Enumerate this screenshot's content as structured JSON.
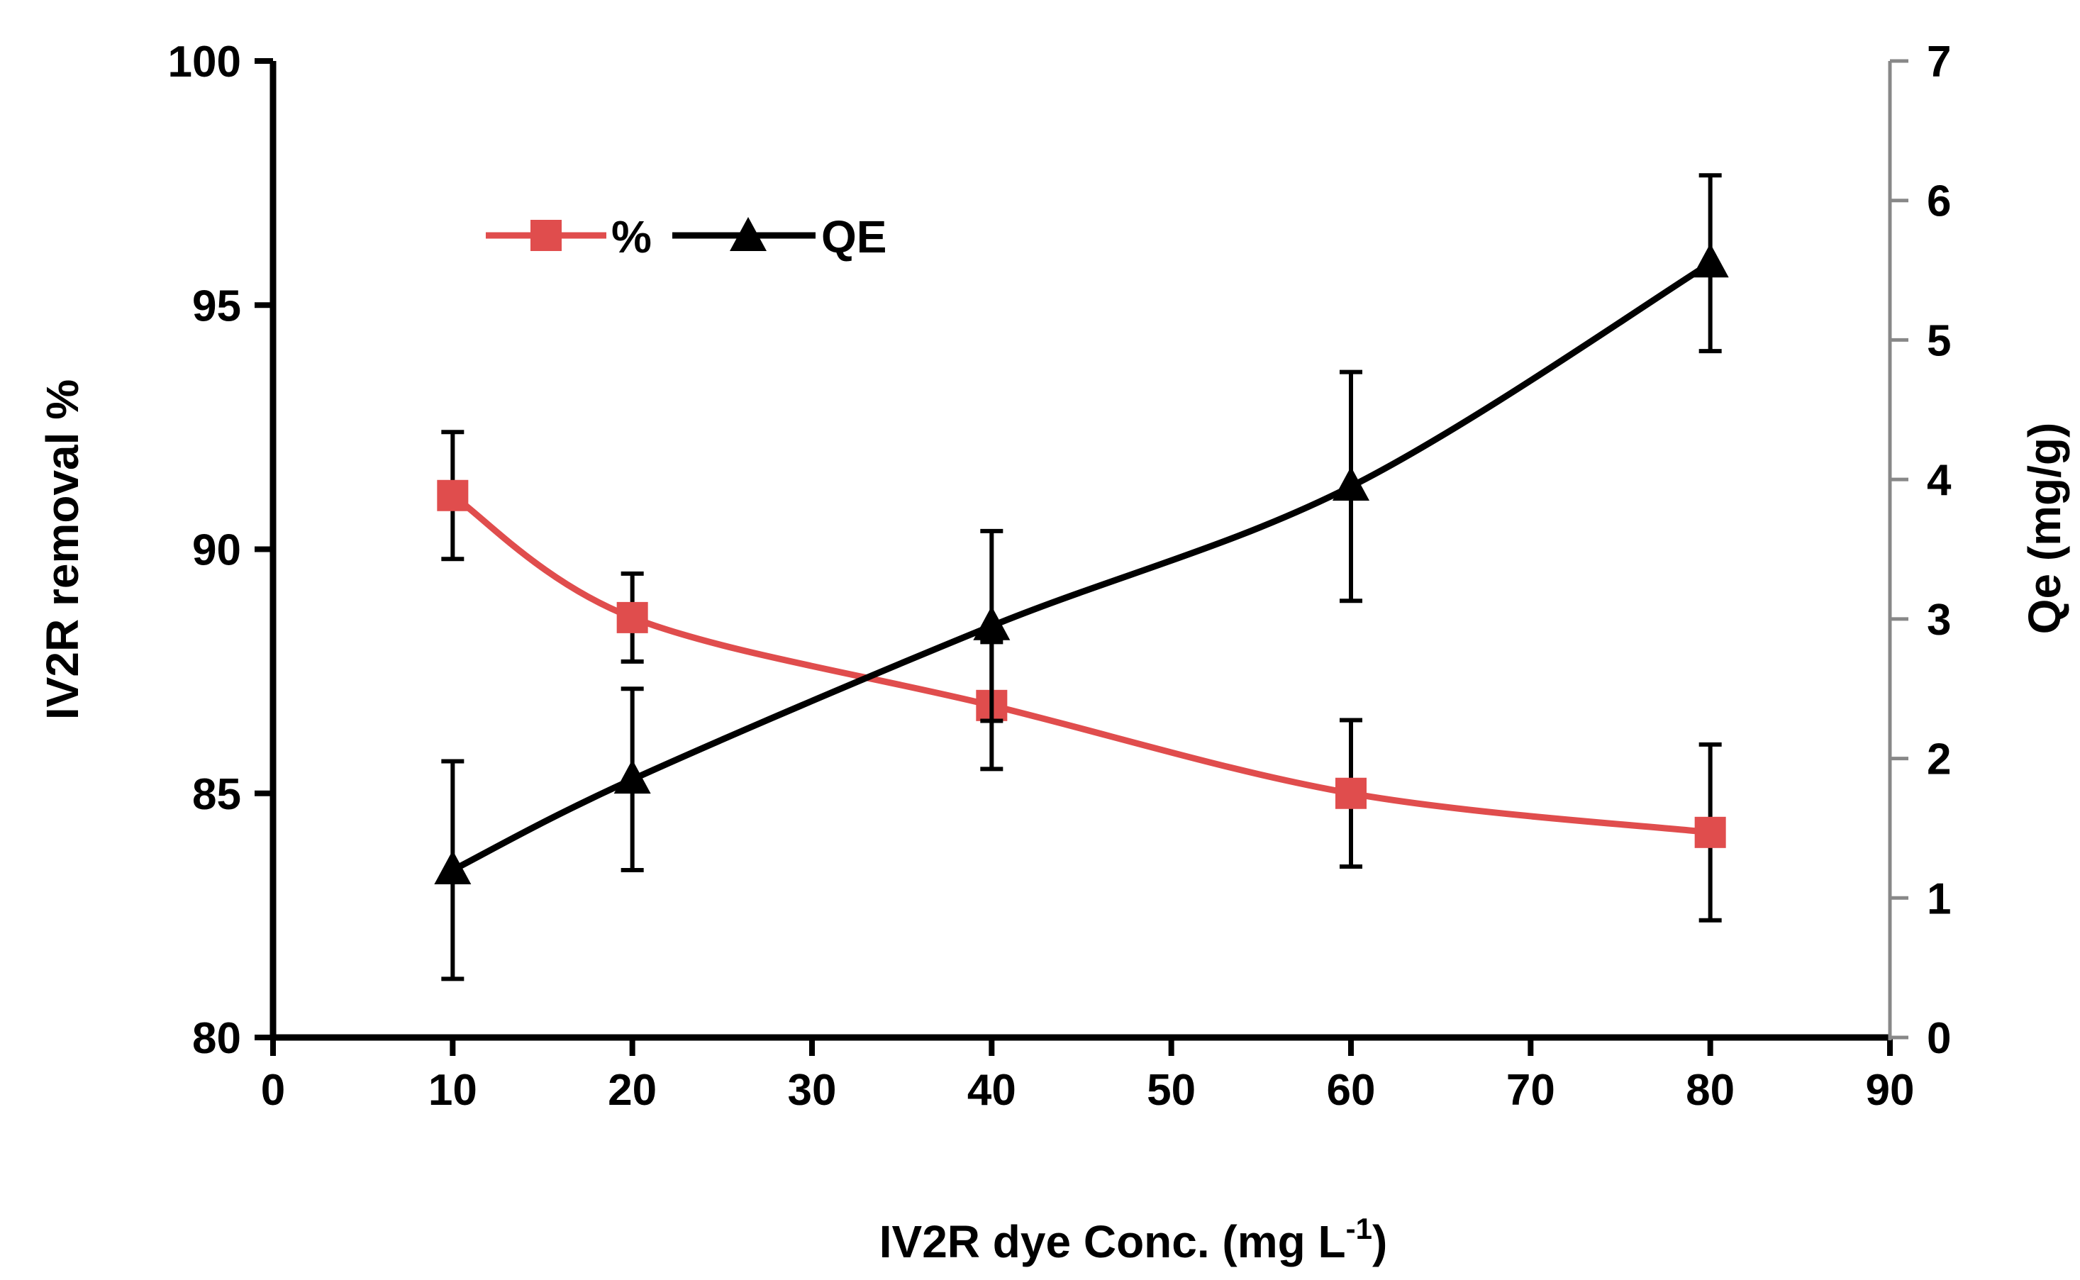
{
  "chart_data": {
    "type": "line",
    "title": "",
    "xlabel": "IV2R dye Conc. (mg L",
    "xlabel_superscript": "-1",
    "xlabel_suffix": ")",
    "ylabel_left": "IV2R removal %",
    "ylabel_right": "Qe (mg/g)",
    "xlim": [
      0,
      90
    ],
    "ylim_left": [
      80,
      100
    ],
    "ylim_right": [
      0,
      7
    ],
    "x_ticks": [
      "0",
      "10",
      "20",
      "30",
      "40",
      "50",
      "60",
      "70",
      "80",
      "90"
    ],
    "y_left_ticks": [
      "80",
      "85",
      "90",
      "95",
      "100"
    ],
    "y_right_ticks": [
      "0",
      "1",
      "2",
      "3",
      "4",
      "5",
      "6",
      "7"
    ],
    "legend_position": "top-left",
    "series": [
      {
        "name": "%",
        "axis": "left",
        "color": "#e04d4d",
        "marker": "square",
        "x": [
          10,
          20,
          40,
          60,
          80
        ],
        "values": [
          91.1,
          88.6,
          86.8,
          85.0,
          84.2
        ],
        "error": [
          1.3,
          0.9,
          1.3,
          1.5,
          1.8
        ]
      },
      {
        "name": "QE",
        "axis": "right",
        "color": "#000000",
        "marker": "triangle",
        "x": [
          10,
          20,
          40,
          60,
          80
        ],
        "values": [
          1.2,
          1.85,
          2.95,
          3.95,
          5.55
        ],
        "error": [
          0.78,
          0.65,
          0.68,
          0.82,
          0.63
        ]
      }
    ]
  }
}
